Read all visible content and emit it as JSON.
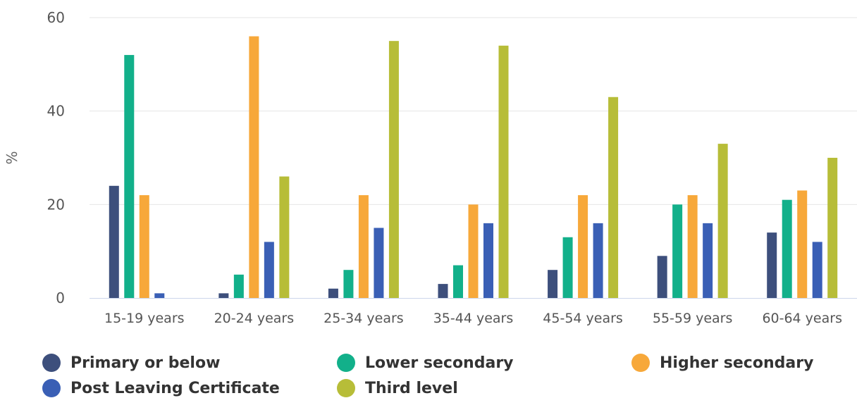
{
  "chart_data": {
    "type": "bar",
    "ylabel": "%",
    "ylim": [
      0,
      60
    ],
    "yticks": [
      0,
      20,
      40,
      60
    ],
    "grid": true,
    "legend_placement": "bottom",
    "categories": [
      "15-19 years",
      "20-24 years",
      "25-34 years",
      "35-44 years",
      "45-54 years",
      "55-59 years",
      "60-64 years"
    ],
    "series": [
      {
        "name": "Primary or below",
        "color": "#3d4f7c",
        "values": [
          24,
          1,
          2,
          3,
          6,
          9,
          14
        ]
      },
      {
        "name": "Lower secondary",
        "color": "#12b08a",
        "values": [
          52,
          5,
          6,
          7,
          13,
          20,
          21
        ]
      },
      {
        "name": "Higher secondary",
        "color": "#f7a83a",
        "values": [
          22,
          56,
          22,
          20,
          22,
          22,
          23
        ]
      },
      {
        "name": "Post Leaving Certificate",
        "color": "#3a5fb5",
        "values": [
          1,
          12,
          15,
          16,
          16,
          16,
          12
        ]
      },
      {
        "name": "Third level",
        "color": "#b7bd38",
        "values": [
          0,
          26,
          55,
          54,
          43,
          33,
          30
        ]
      }
    ]
  }
}
